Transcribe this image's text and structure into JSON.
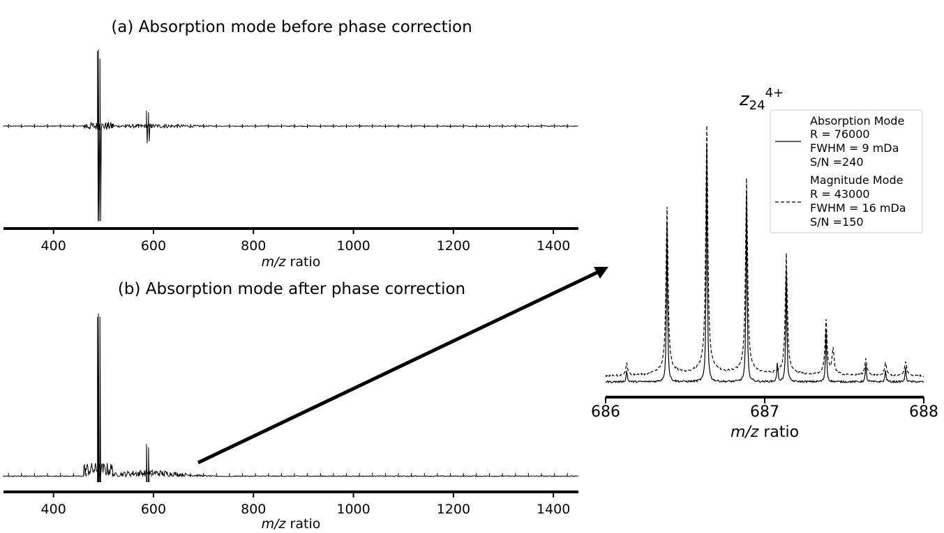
{
  "chart_data": [
    {
      "id": "a",
      "type": "line",
      "title": "(a) Absorption mode before phase correction",
      "xlabel": {
        "italic": "m/z",
        "rest": " ratio"
      },
      "xlim": [
        300,
        1450
      ],
      "xticks": [
        "400",
        "600",
        "800",
        "1000",
        "1200",
        "1400"
      ],
      "peaks": [
        {
          "mz": 488,
          "amp": 0.98,
          "neg": 1.0
        },
        {
          "mz": 490,
          "amp": 1.0,
          "neg": 1.0
        },
        {
          "mz": 493,
          "amp": 0.88,
          "neg": 1.0
        },
        {
          "mz": 586,
          "amp": 0.2,
          "neg": 0.18
        },
        {
          "mz": 590,
          "amp": 0.18,
          "neg": 0.16
        }
      ]
    },
    {
      "id": "b",
      "type": "line",
      "title": "(b) Absorption mode after phase correction",
      "xlabel": {
        "italic": "m/z",
        "rest": " ratio"
      },
      "xlim": [
        300,
        1450
      ],
      "xticks": [
        "400",
        "600",
        "800",
        "1000",
        "1200",
        "1400"
      ],
      "peaks": [
        {
          "mz": 488,
          "amp": 0.98
        },
        {
          "mz": 490,
          "amp": 1.0
        },
        {
          "mz": 493,
          "amp": 0.98
        },
        {
          "mz": 586,
          "amp": 0.2
        },
        {
          "mz": 590,
          "amp": 0.18
        }
      ]
    },
    {
      "id": "c",
      "type": "line",
      "title": {
        "base": "z",
        "sub": "24",
        "sup": "4+"
      },
      "xlabel": {
        "italic": "m/z",
        "rest": " ratio"
      },
      "xlim": [
        686,
        688
      ],
      "xticks": [
        "686",
        "687",
        "688"
      ],
      "legend": {
        "position": "top-right",
        "entries": [
          {
            "style": "solid",
            "lines": [
              "Absorption Mode",
              "R = 76000",
              "FWHM = 9 mDa",
              "S/N =240"
            ]
          },
          {
            "style": "dashed",
            "lines": [
              "Magnitude Mode",
              "R = 43000",
              "FWHM = 16 mDa",
              "S/N =150"
            ]
          }
        ]
      },
      "series": [
        {
          "style": "solid",
          "peaks": [
            {
              "mz": 686.133,
              "amp": 0.05
            },
            {
              "mz": 686.386,
              "amp": 0.68
            },
            {
              "mz": 686.636,
              "amp": 1.0
            },
            {
              "mz": 686.886,
              "amp": 0.79
            },
            {
              "mz": 687.08,
              "amp": 0.08
            },
            {
              "mz": 687.136,
              "amp": 0.47
            },
            {
              "mz": 687.386,
              "amp": 0.22
            },
            {
              "mz": 687.636,
              "amp": 0.07
            },
            {
              "mz": 687.76,
              "amp": 0.05
            },
            {
              "mz": 687.886,
              "amp": 0.06
            }
          ]
        },
        {
          "style": "dashed",
          "peaks": [
            {
              "mz": 686.133,
              "amp": 0.05
            },
            {
              "mz": 686.386,
              "amp": 0.68
            },
            {
              "mz": 686.636,
              "amp": 1.0
            },
            {
              "mz": 686.886,
              "amp": 0.79
            },
            {
              "mz": 687.136,
              "amp": 0.49
            },
            {
              "mz": 687.386,
              "amp": 0.22
            },
            {
              "mz": 687.43,
              "amp": 0.1
            },
            {
              "mz": 687.636,
              "amp": 0.07
            },
            {
              "mz": 687.76,
              "amp": 0.05
            },
            {
              "mz": 687.886,
              "amp": 0.06
            }
          ]
        }
      ]
    }
  ]
}
